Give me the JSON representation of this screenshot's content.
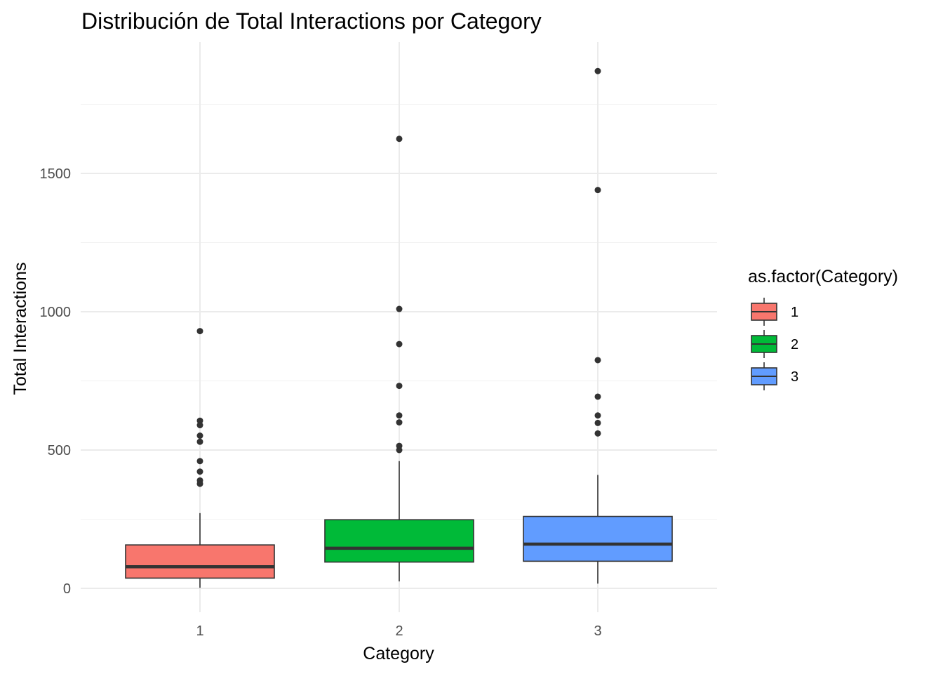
{
  "chart_data": {
    "type": "boxplot",
    "title": "Distribución de Total Interactions por Category",
    "xlabel": "Category",
    "ylabel": "Total Interactions",
    "categories": [
      "1",
      "2",
      "3"
    ],
    "ylim": [
      -80,
      1960
    ],
    "yticks": [
      0,
      500,
      1000,
      1500
    ],
    "grid": true,
    "legend": {
      "title": "as.factor(Category)",
      "position": "right",
      "labels": [
        "1",
        "2",
        "3"
      ]
    },
    "series": [
      {
        "category": "1",
        "color": "#F8766D",
        "whisker_low": 2,
        "q1": 37,
        "median": 78,
        "q3": 157,
        "whisker_high": 272,
        "outliers": [
          930,
          606,
          590,
          552,
          530,
          460,
          422,
          390,
          378
        ]
      },
      {
        "category": "2",
        "color": "#00BA38",
        "whisker_low": 25,
        "q1": 95,
        "median": 145,
        "q3": 248,
        "whisker_high": 460,
        "outliers": [
          1625,
          1010,
          883,
          732,
          625,
          600,
          515,
          500
        ]
      },
      {
        "category": "3",
        "color": "#619CFF",
        "whisker_low": 17,
        "q1": 98,
        "median": 160,
        "q3": 260,
        "whisker_high": 410,
        "outliers": [
          1870,
          1440,
          825,
          693,
          625,
          598,
          560
        ]
      }
    ]
  }
}
